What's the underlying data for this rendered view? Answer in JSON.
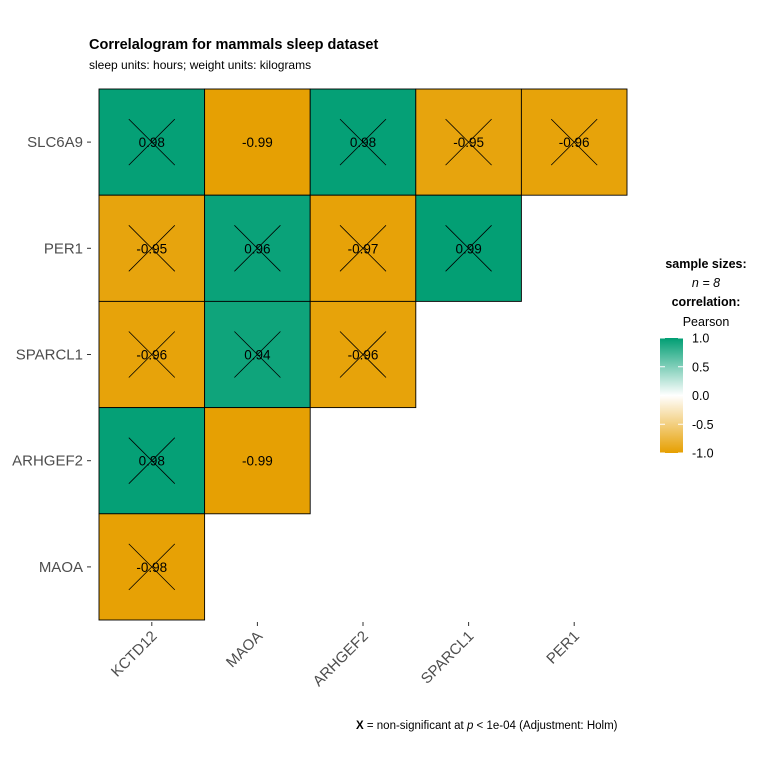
{
  "chart_data": {
    "type": "heatmap",
    "title": "Correlalogram for mammals sleep dataset",
    "subtitle": "sleep units: hours; weight units: kilograms",
    "x_categories": [
      "KCTD12",
      "MAOA",
      "ARHGEF2",
      "SPARCL1",
      "PER1"
    ],
    "y_categories": [
      "SLC6A9",
      "PER1",
      "SPARCL1",
      "ARHGEF2",
      "MAOA"
    ],
    "cells": [
      {
        "row": "SLC6A9",
        "col": "KCTD12",
        "value": 0.98,
        "label": "0.98",
        "significant": false
      },
      {
        "row": "SLC6A9",
        "col": "MAOA",
        "value": -0.99,
        "label": "-0.99",
        "significant": true
      },
      {
        "row": "SLC6A9",
        "col": "ARHGEF2",
        "value": 0.98,
        "label": "0.98",
        "significant": false
      },
      {
        "row": "SLC6A9",
        "col": "SPARCL1",
        "value": -0.95,
        "label": "-0.95",
        "significant": false
      },
      {
        "row": "SLC6A9",
        "col": "PER1",
        "value": -0.96,
        "label": "-0.96",
        "significant": false
      },
      {
        "row": "PER1",
        "col": "KCTD12",
        "value": -0.95,
        "label": "-0.95",
        "significant": false
      },
      {
        "row": "PER1",
        "col": "MAOA",
        "value": 0.96,
        "label": "0.96",
        "significant": false
      },
      {
        "row": "PER1",
        "col": "ARHGEF2",
        "value": -0.97,
        "label": "-0.97",
        "significant": false
      },
      {
        "row": "PER1",
        "col": "SPARCL1",
        "value": 0.99,
        "label": "0.99",
        "significant": false
      },
      {
        "row": "SPARCL1",
        "col": "KCTD12",
        "value": -0.96,
        "label": "-0.96",
        "significant": false
      },
      {
        "row": "SPARCL1",
        "col": "MAOA",
        "value": 0.94,
        "label": "0.94",
        "significant": false
      },
      {
        "row": "SPARCL1",
        "col": "ARHGEF2",
        "value": -0.96,
        "label": "-0.96",
        "significant": false
      },
      {
        "row": "ARHGEF2",
        "col": "KCTD12",
        "value": 0.98,
        "label": "0.98",
        "significant": false
      },
      {
        "row": "ARHGEF2",
        "col": "MAOA",
        "value": -0.99,
        "label": "-0.99",
        "significant": true
      },
      {
        "row": "MAOA",
        "col": "KCTD12",
        "value": -0.98,
        "label": "-0.98",
        "significant": false
      }
    ],
    "colors": {
      "low": "#E69F00",
      "mid": "#FFFFFF",
      "high": "#009E73"
    },
    "legend": {
      "title_samples": "sample sizes:",
      "n_label": "n = 8",
      "title_correlation": "correlation:",
      "method": "Pearson",
      "ticks": [
        1.0,
        0.5,
        0.0,
        -0.5,
        -1.0
      ],
      "tick_labels": [
        "1.0",
        "0.5",
        "0.0",
        "-0.5",
        "-1.0"
      ],
      "range": [
        -1,
        1
      ]
    },
    "caption": {
      "mark": "X",
      "text": "= non-significant at",
      "p": "p",
      "threshold": "< 1e-04 (Adjustment: Holm)"
    }
  }
}
